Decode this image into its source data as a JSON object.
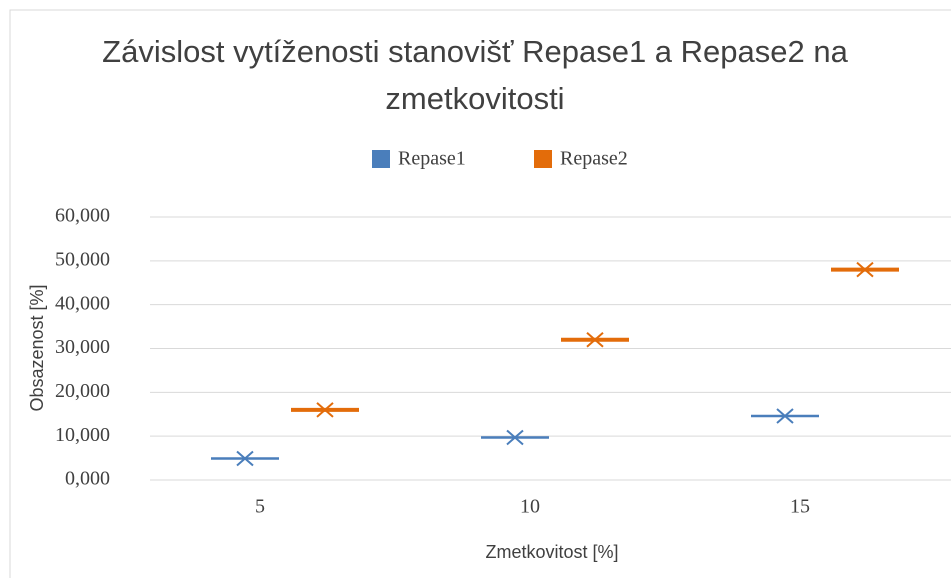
{
  "chart_data": {
    "type": "box",
    "title": "Závislost vytíženosti stanovišť Repase1 a Repase2 na zmetkovitosti",
    "x_label": "Zmetkovitost [%]",
    "y_label": "Obsazenost [%]",
    "categories": [
      "5",
      "10",
      "15"
    ],
    "series": [
      {
        "name": "Repase1",
        "color": "#4a7ebb",
        "values": [
          4.9,
          9.7,
          14.6
        ]
      },
      {
        "name": "Repase2",
        "color": "#e36c0a",
        "values": [
          16,
          32,
          48
        ]
      }
    ],
    "ylim": [
      0,
      60
    ],
    "yticks": [
      {
        "value": 0,
        "label": "0,000"
      },
      {
        "value": 10,
        "label": "10,000"
      },
      {
        "value": 20,
        "label": "20,000"
      },
      {
        "value": 30,
        "label": "30,000"
      },
      {
        "value": 40,
        "label": "40,000"
      },
      {
        "value": 50,
        "label": "50,000"
      },
      {
        "value": 60,
        "label": "60,000"
      }
    ],
    "grid": true,
    "legend": "top"
  }
}
